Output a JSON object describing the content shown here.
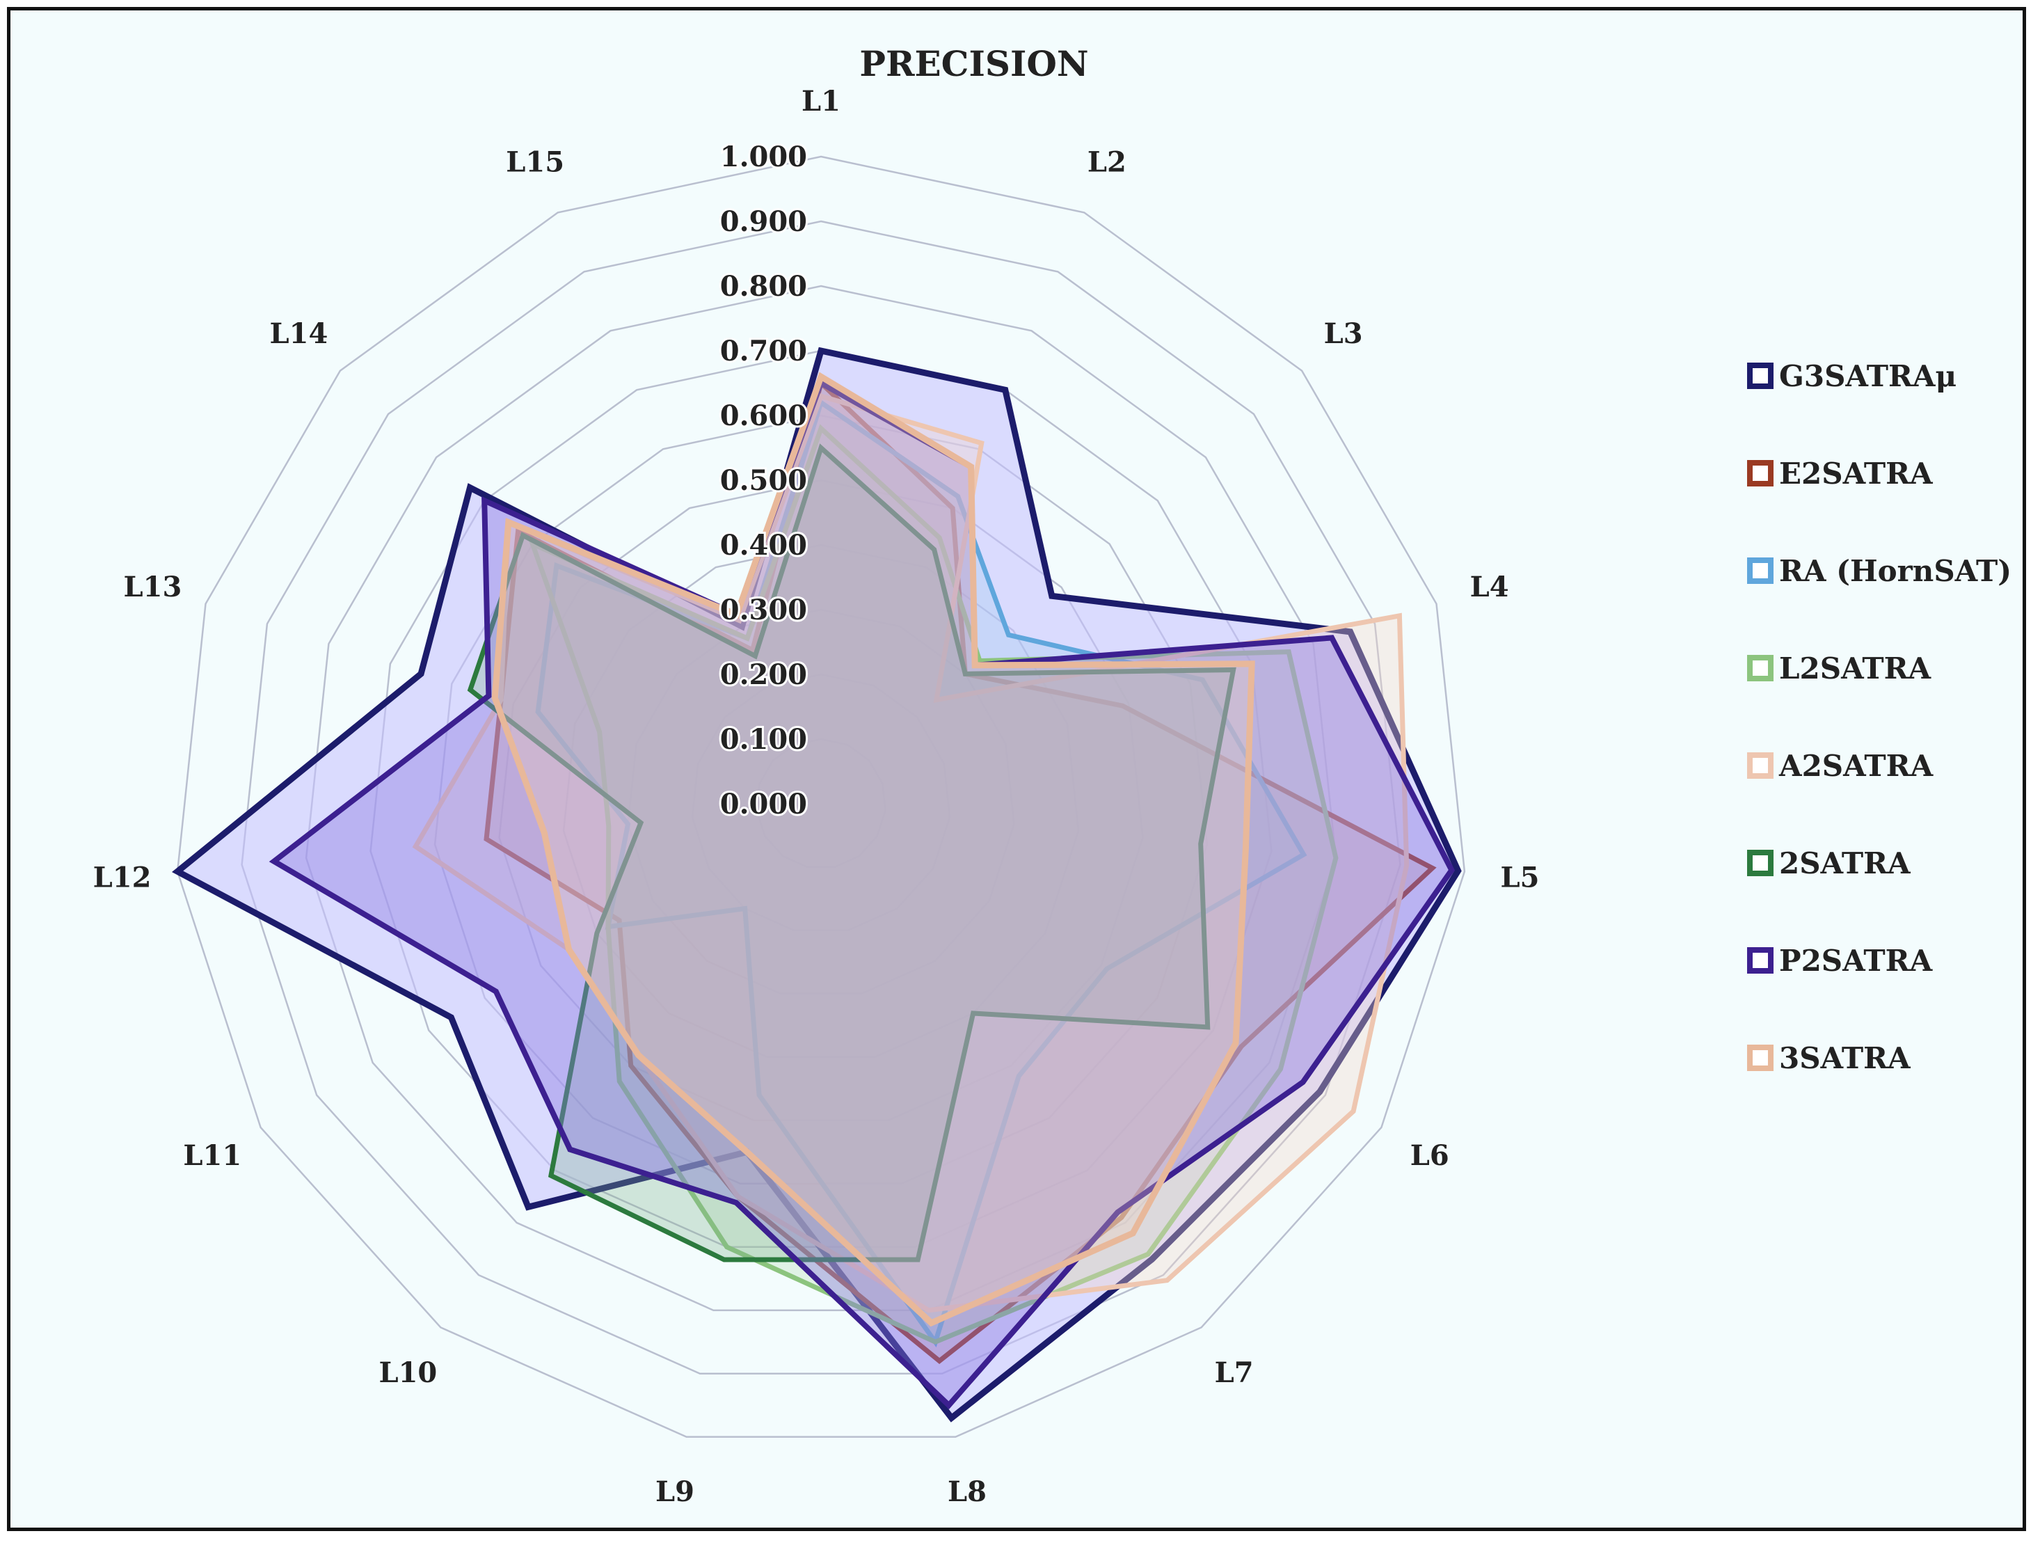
{
  "chart_data": {
    "type": "radar",
    "title": "PRECISION",
    "categories": [
      "L1",
      "L2",
      "L3",
      "L4",
      "L5",
      "L6",
      "L7",
      "L8",
      "L9",
      "L10",
      "L11",
      "L12",
      "L13",
      "L14",
      "L15"
    ],
    "rlim": [
      0,
      1
    ],
    "ticks": [
      "0.000",
      "0.100",
      "0.200",
      "0.300",
      "0.400",
      "0.500",
      "0.600",
      "0.700",
      "0.800",
      "0.900",
      "1.000"
    ],
    "legend_position": "right",
    "series": [
      {
        "name": "G3SATRAμ",
        "color": "#1c1c6b",
        "fill": "#c4c0ff",
        "fill_opacity": 0.55,
        "stroke_width": 9,
        "values": [
          0.7,
          0.7,
          0.48,
          0.86,
          0.99,
          0.89,
          0.87,
          0.97,
          0.55,
          0.77,
          0.66,
          1.0,
          0.65,
          0.73,
          0.3
        ]
      },
      {
        "name": "E2SATRA",
        "color": "#9a3a22",
        "fill": "#c98a7a",
        "fill_opacity": 0.25,
        "stroke_width": 7,
        "values": [
          0.65,
          0.5,
          0.3,
          0.49,
          0.95,
          0.75,
          0.79,
          0.88,
          0.62,
          0.5,
          0.36,
          0.52,
          0.52,
          0.63,
          0.26
        ]
      },
      {
        "name": "RA (HornSAT)",
        "color": "#5fa6dc",
        "fill": "#9cc9ee",
        "fill_opacity": 0.3,
        "stroke_width": 7,
        "values": [
          0.62,
          0.52,
          0.39,
          0.62,
          0.75,
          0.51,
          0.52,
          0.85,
          0.46,
          0.2,
          0.38,
          0.3,
          0.46,
          0.55,
          0.28
        ]
      },
      {
        "name": "L2SATRA",
        "color": "#8cc47e",
        "fill": "#b7dcae",
        "fill_opacity": 0.3,
        "stroke_width": 7,
        "values": [
          0.58,
          0.45,
          0.33,
          0.76,
          0.8,
          0.82,
          0.86,
          0.85,
          0.7,
          0.53,
          0.38,
          0.33,
          0.36,
          0.6,
          0.28
        ]
      },
      {
        "name": "A2SATRA",
        "color": "#eec6b0",
        "fill": "#f3d8c8",
        "fill_opacity": 0.35,
        "stroke_width": 7,
        "values": [
          0.63,
          0.61,
          0.24,
          0.94,
          0.91,
          0.95,
          0.91,
          0.8,
          0.62,
          0.48,
          0.45,
          0.63,
          0.52,
          0.65,
          0.31
        ]
      },
      {
        "name": "2SATRA",
        "color": "#2c7a3e",
        "fill": "#7fae8a",
        "fill_opacity": 0.3,
        "stroke_width": 7,
        "values": [
          0.55,
          0.43,
          0.3,
          0.67,
          0.59,
          0.69,
          0.4,
          0.72,
          0.72,
          0.71,
          0.4,
          0.28,
          0.57,
          0.62,
          0.25
        ]
      },
      {
        "name": "P2SATRA",
        "color": "#3c2090",
        "fill": "#8a78e2",
        "fill_opacity": 0.4,
        "stroke_width": 8,
        "values": [
          0.65,
          0.57,
          0.32,
          0.83,
          0.98,
          0.86,
          0.78,
          0.95,
          0.63,
          0.66,
          0.58,
          0.85,
          0.54,
          0.7,
          0.32
        ]
      },
      {
        "name": "3SATRA",
        "color": "#e8b89a",
        "fill": "#efd0be",
        "fill_opacity": 0.3,
        "stroke_width": 9,
        "values": [
          0.66,
          0.57,
          0.32,
          0.7,
          0.66,
          0.74,
          0.82,
          0.82,
          0.55,
          0.48,
          0.45,
          0.43,
          0.53,
          0.65,
          0.32
        ]
      }
    ]
  }
}
